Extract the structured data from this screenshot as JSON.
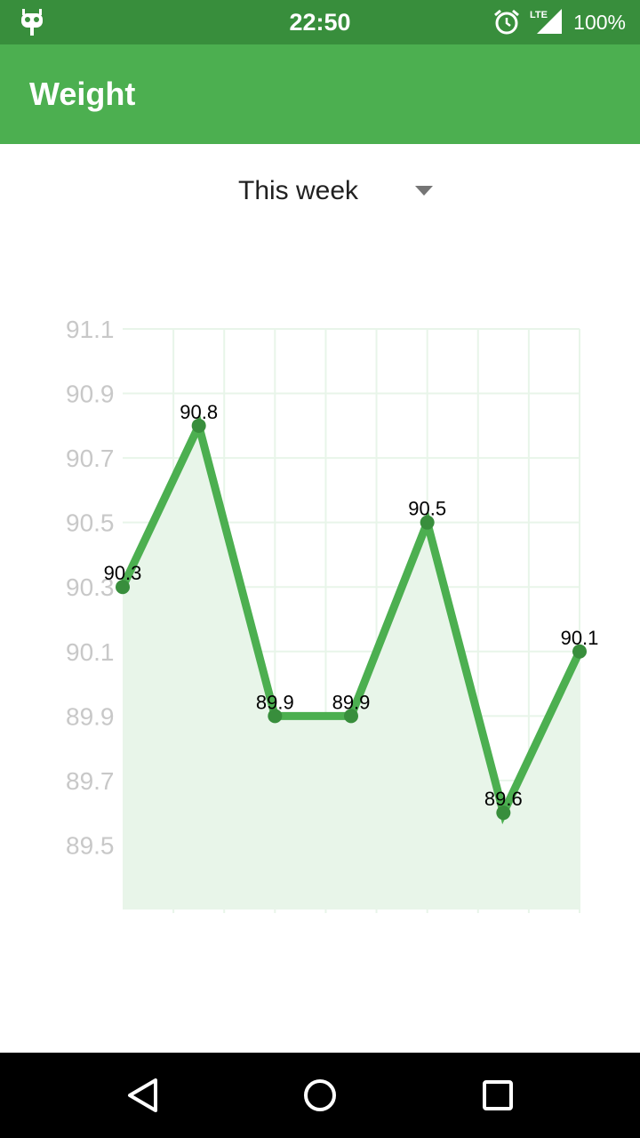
{
  "status_bar": {
    "time": "22:50",
    "battery": "100%",
    "network": "LTE",
    "icons": [
      "app-notification-icon",
      "alarm-icon",
      "lte-signal-icon"
    ]
  },
  "app_bar": {
    "title": "Weight"
  },
  "period_select": {
    "selected": "This week",
    "icon": "dropdown-arrow-icon"
  },
  "colors": {
    "status_bar": "#388e3c",
    "app_bar": "#4caf50",
    "line": "#4caf50",
    "point": "#388e3c",
    "fill": "#e8f5e9",
    "grid": "#e8f5e9",
    "axis_label": "#c8c8c8"
  },
  "chart_data": {
    "type": "line",
    "title": "",
    "xlabel": "",
    "ylabel": "",
    "y_ticks": [
      "91.1",
      "90.9",
      "90.7",
      "90.5",
      "90.3",
      "90.1",
      "89.9",
      "89.7",
      "89.5"
    ],
    "ylim": [
      89.3,
      91.1
    ],
    "x": [
      0,
      1.5,
      3,
      4.5,
      6,
      7.5,
      9
    ],
    "xlim": [
      0,
      9
    ],
    "values": [
      90.3,
      90.8,
      89.9,
      89.9,
      90.5,
      89.6,
      90.1
    ],
    "data_labels": [
      "90.3",
      "90.8",
      "89.9",
      "89.9",
      "90.5",
      "89.6",
      "90.1"
    ],
    "grid": true,
    "fill": true
  },
  "nav_bar": {
    "buttons": [
      "back-icon",
      "home-icon",
      "recents-icon"
    ]
  }
}
